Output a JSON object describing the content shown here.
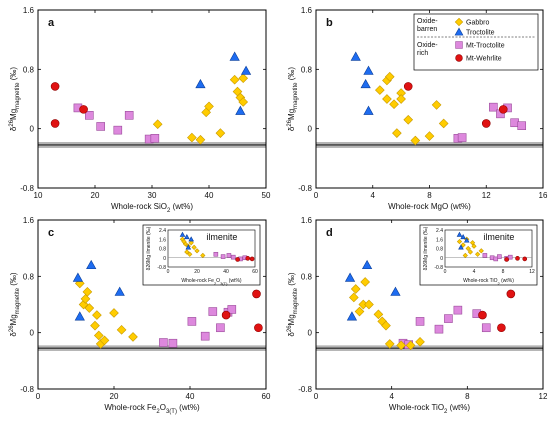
{
  "colors": {
    "gabbro": "#FFCC00",
    "gabbro_edge": "#C89A00",
    "troctolite": "#1E6CF0",
    "troctolite_edge": "#0A3E9A",
    "mt_troctolite": "#DD88DD",
    "mt_troctolite_edge": "#9A4B9A",
    "mt_wehrlite": "#E01212",
    "mt_wehrlite_edge": "#900000",
    "band": "#B4B4B4"
  },
  "legend": {
    "group1": [
      "Oxide-",
      "barren"
    ],
    "group2": [
      "Oxide-",
      "rich"
    ],
    "items": [
      "Gabbro",
      "Troctolite",
      "Mt-Troctolite",
      "Mt-Wehrlite"
    ]
  },
  "chart_data": [
    {
      "type": "scatter",
      "panel": "a",
      "ylabel": "δ26Mg magnetite (‰)",
      "xlabel": "Whole-rock SiO2 (wt%)",
      "xlim": [
        10,
        50
      ],
      "ylim": [
        -0.8,
        1.6
      ],
      "xticks": [
        "10",
        "20",
        "30",
        "40",
        "50"
      ],
      "yticks": [
        "-0.8",
        "0",
        "0.8",
        "1.6"
      ],
      "mantle_band": [
        -0.18,
        -0.26
      ],
      "series": [
        {
          "name": "Gabbro",
          "points": [
            [
              31,
              0.06
            ],
            [
              37,
              -0.12
            ],
            [
              38.5,
              -0.15
            ],
            [
              39.5,
              0.22
            ],
            [
              40,
              0.3
            ],
            [
              42,
              -0.06
            ],
            [
              44.5,
              0.66
            ],
            [
              45,
              0.5
            ],
            [
              45.5,
              0.42
            ],
            [
              46,
              0.36
            ],
            [
              46,
              0.68
            ]
          ]
        },
        {
          "name": "Troctolite",
          "points": [
            [
              38.5,
              0.6
            ],
            [
              44.5,
              0.97
            ],
            [
              45.5,
              0.24
            ],
            [
              46.5,
              0.78
            ]
          ]
        },
        {
          "name": "Mt-Troctolite",
          "points": [
            [
              17,
              0.28
            ],
            [
              19,
              0.18
            ],
            [
              21,
              0.03
            ],
            [
              24,
              -0.02
            ],
            [
              26,
              0.18
            ],
            [
              29.5,
              -0.14
            ],
            [
              30.5,
              -0.13
            ]
          ]
        },
        {
          "name": "Mt-Wehrlite",
          "points": [
            [
              13,
              0.57
            ],
            [
              13,
              0.07
            ],
            [
              18,
              0.26
            ]
          ]
        }
      ]
    },
    {
      "type": "scatter",
      "panel": "b",
      "ylabel": "δ26Mg magnetite (‰)",
      "xlabel": "Whole-rock MgO (wt%)",
      "xlim": [
        0,
        16
      ],
      "ylim": [
        -0.8,
        1.6
      ],
      "xticks": [
        "0",
        "4",
        "8",
        "12",
        "16"
      ],
      "yticks": [
        "-0.8",
        "0",
        "0.8",
        "1.6"
      ],
      "mantle_band": [
        -0.18,
        -0.26
      ],
      "series": [
        {
          "name": "Gabbro",
          "points": [
            [
              4.5,
              0.52
            ],
            [
              5,
              0.65
            ],
            [
              5,
              0.4
            ],
            [
              5.2,
              0.7
            ],
            [
              5.5,
              0.33
            ],
            [
              5.7,
              -0.06
            ],
            [
              6,
              0.48
            ],
            [
              6,
              0.4
            ],
            [
              6.5,
              0.12
            ],
            [
              7,
              -0.16
            ],
            [
              8,
              -0.1
            ],
            [
              8.5,
              0.32
            ],
            [
              9,
              0.07
            ]
          ]
        },
        {
          "name": "Troctolite",
          "points": [
            [
              2.8,
              0.97
            ],
            [
              3.5,
              0.6
            ],
            [
              3.7,
              0.78
            ],
            [
              3.7,
              0.24
            ]
          ]
        },
        {
          "name": "Mt-Troctolite",
          "points": [
            [
              10,
              -0.13
            ],
            [
              10.3,
              -0.12
            ],
            [
              12.5,
              0.29
            ],
            [
              13,
              0.2
            ],
            [
              13.5,
              0.28
            ],
            [
              14,
              0.08
            ],
            [
              14.5,
              0.04
            ]
          ]
        },
        {
          "name": "Mt-Wehrlite",
          "points": [
            [
              6.5,
              0.57
            ],
            [
              12,
              0.07
            ],
            [
              13.2,
              0.26
            ]
          ]
        }
      ]
    },
    {
      "type": "scatter",
      "panel": "c",
      "ylabel": "δ26Mg magnetite (‰)",
      "xlabel": "Whole-rock Fe2O3(T) (wt%)",
      "xlim": [
        0,
        60
      ],
      "ylim": [
        -0.8,
        1.6
      ],
      "xticks": [
        "0",
        "20",
        "40",
        "60"
      ],
      "yticks": [
        "-0.8",
        "0",
        "0.8",
        "1.6"
      ],
      "mantle_band": [
        -0.18,
        -0.26
      ],
      "inset": {
        "title": "ilmenite",
        "xlabel": "Whole-rock Fe2O3(T) (wt%)",
        "ylabel": "δ26Mg ilmenite (‰)",
        "xlim": [
          0,
          60
        ],
        "ylim": [
          -0.8,
          2.4
        ],
        "xticks": [
          "0",
          "20",
          "40",
          "60"
        ],
        "yticks": [
          "-0.8",
          "0",
          "0.8",
          "1.6",
          "2.4"
        ],
        "series": [
          {
            "name": "Gabbro",
            "points": [
              [
                10,
                1.6
              ],
              [
                12,
                1.2
              ],
              [
                14,
                1.0
              ],
              [
                16,
                1.3
              ],
              [
                18,
                0.9
              ],
              [
                20,
                0.6
              ],
              [
                24,
                0.2
              ],
              [
                13,
                0.5
              ],
              [
                15,
                0.3
              ],
              [
                11,
                1.4
              ]
            ]
          },
          {
            "name": "Troctolite",
            "points": [
              [
                10,
                2.0
              ],
              [
                13,
                1.8
              ],
              [
                14,
                0.9
              ],
              [
                16,
                1.6
              ]
            ]
          },
          {
            "name": "Mt-Troctolite",
            "points": [
              [
                33,
                0.3
              ],
              [
                38,
                0.1
              ],
              [
                42,
                0.2
              ],
              [
                45,
                0.05
              ],
              [
                50,
                -0.1
              ],
              [
                53,
                0.0
              ]
            ]
          },
          {
            "name": "Mt-Wehrlite",
            "points": [
              [
                48,
                -0.15
              ],
              [
                55,
                -0.05
              ],
              [
                58,
                -0.1
              ]
            ]
          }
        ]
      },
      "series": [
        {
          "name": "Gabbro",
          "points": [
            [
              11,
              0.7
            ],
            [
              12,
              0.4
            ],
            [
              12.5,
              0.48
            ],
            [
              13,
              0.58
            ],
            [
              13.5,
              0.35
            ],
            [
              15,
              0.1
            ],
            [
              15.5,
              0.25
            ],
            [
              16,
              -0.04
            ],
            [
              16.5,
              -0.16
            ],
            [
              17.5,
              -0.11
            ],
            [
              20,
              0.28
            ],
            [
              22,
              0.04
            ],
            [
              25,
              -0.06
            ]
          ]
        },
        {
          "name": "Troctolite",
          "points": [
            [
              10.5,
              0.78
            ],
            [
              11,
              0.23
            ],
            [
              14,
              0.96
            ],
            [
              21.5,
              0.58
            ]
          ]
        },
        {
          "name": "Mt-Troctolite",
          "points": [
            [
              33,
              -0.14
            ],
            [
              35.5,
              -0.15
            ],
            [
              40.5,
              0.16
            ],
            [
              44,
              -0.05
            ],
            [
              46,
              0.3
            ],
            [
              48,
              0.07
            ],
            [
              50,
              0.29
            ],
            [
              51,
              0.33
            ]
          ]
        },
        {
          "name": "Mt-Wehrlite",
          "points": [
            [
              49.5,
              0.25
            ],
            [
              57.5,
              0.55
            ],
            [
              58,
              0.07
            ]
          ]
        }
      ]
    },
    {
      "type": "scatter",
      "panel": "d",
      "ylabel": "δ26Mg magnetite (‰)",
      "xlabel": "Whole-rock TiO2 (wt%)",
      "xlim": [
        0,
        12
      ],
      "ylim": [
        -0.8,
        1.6
      ],
      "xticks": [
        "0",
        "4",
        "8",
        "12"
      ],
      "yticks": [
        "-0.8",
        "0",
        "0.8",
        "1.6"
      ],
      "mantle_band": [
        -0.18,
        -0.26
      ],
      "inset": {
        "title": "ilmenite",
        "xlabel": "Whole-rock TiO2 (wt%)",
        "ylabel": "δ26Mg ilmenite (‰)",
        "xlim": [
          0,
          12
        ],
        "ylim": [
          -0.8,
          2.4
        ],
        "xticks": [
          "0",
          "4",
          "8",
          "12"
        ],
        "yticks": [
          "-0.8",
          "0",
          "0.8",
          "1.6",
          "2.4"
        ],
        "series": [
          {
            "name": "Gabbro",
            "points": [
              [
                2,
                1.4
              ],
              [
                2.5,
                1.1
              ],
              [
                3,
                1.6
              ],
              [
                3.2,
                0.8
              ],
              [
                3.5,
                0.5
              ],
              [
                4,
                1.0
              ],
              [
                4.5,
                0.3
              ],
              [
                5,
                0.6
              ],
              [
                2.8,
                0.2
              ],
              [
                3.8,
                1.3
              ]
            ]
          },
          {
            "name": "Troctolite",
            "points": [
              [
                2,
                2.0
              ],
              [
                2.5,
                1.8
              ],
              [
                3,
                1.5
              ],
              [
                2.2,
                0.9
              ]
            ]
          },
          {
            "name": "Mt-Troctolite",
            "points": [
              [
                5.5,
                0.2
              ],
              [
                6.5,
                0.0
              ],
              [
                7,
                -0.1
              ],
              [
                7.5,
                0.1
              ],
              [
                8.5,
                -0.05
              ],
              [
                9,
                0.05
              ]
            ]
          },
          {
            "name": "Mt-Wehrlite",
            "points": [
              [
                8.5,
                -0.15
              ],
              [
                10,
                -0.05
              ],
              [
                11,
                -0.1
              ]
            ]
          }
        ]
      },
      "series": [
        {
          "name": "Gabbro",
          "points": [
            [
              2,
              0.5
            ],
            [
              2.1,
              0.62
            ],
            [
              2.3,
              0.3
            ],
            [
              2.5,
              0.4
            ],
            [
              2.6,
              0.72
            ],
            [
              2.8,
              0.4
            ],
            [
              3.3,
              0.26
            ],
            [
              3.5,
              0.16
            ],
            [
              3.7,
              0.1
            ],
            [
              3.9,
              -0.16
            ],
            [
              4.5,
              -0.18
            ],
            [
              5,
              -0.18
            ],
            [
              5.5,
              -0.13
            ]
          ]
        },
        {
          "name": "Troctolite",
          "points": [
            [
              1.8,
              0.78
            ],
            [
              1.9,
              0.23
            ],
            [
              2.7,
              0.96
            ],
            [
              4.2,
              0.58
            ]
          ]
        },
        {
          "name": "Mt-Troctolite",
          "points": [
            [
              4.6,
              -0.15
            ],
            [
              4.9,
              -0.17
            ],
            [
              5.5,
              0.16
            ],
            [
              6.5,
              0.05
            ],
            [
              7,
              0.2
            ],
            [
              7.5,
              0.32
            ],
            [
              8.5,
              0.27
            ],
            [
              9,
              0.07
            ]
          ]
        },
        {
          "name": "Mt-Wehrlite",
          "points": [
            [
              8.8,
              0.25
            ],
            [
              9.8,
              0.07
            ],
            [
              10.3,
              0.55
            ]
          ]
        }
      ]
    }
  ]
}
